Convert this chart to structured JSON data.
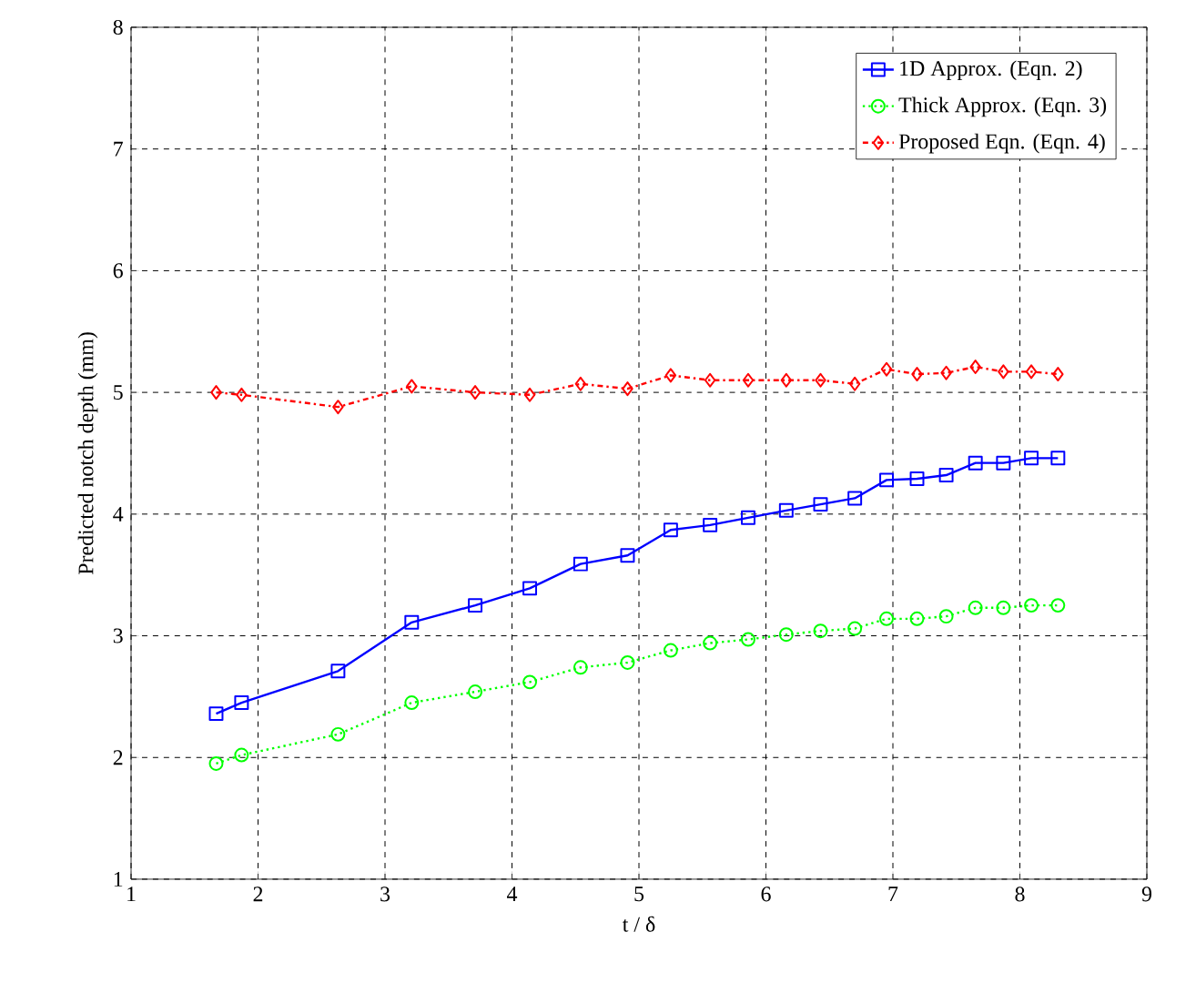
{
  "chart_data": {
    "type": "line",
    "xlabel": "t / δ",
    "ylabel": "Predicted notch depth (mm)",
    "x": [
      1.67,
      1.87,
      2.63,
      3.21,
      3.71,
      4.14,
      4.54,
      4.91,
      5.25,
      5.56,
      5.86,
      6.16,
      6.43,
      6.7,
      6.95,
      7.19,
      7.42,
      7.65,
      7.87,
      8.09,
      8.3
    ],
    "series": [
      {
        "name": "1D Approx. (Eqn. 2)",
        "color": "#0000ff",
        "marker": "square",
        "line_style": "solid",
        "values": [
          2.36,
          2.45,
          2.71,
          3.11,
          3.25,
          3.39,
          3.59,
          3.66,
          3.87,
          3.91,
          3.97,
          4.03,
          4.08,
          4.13,
          4.28,
          4.29,
          4.32,
          4.42,
          4.42,
          4.46,
          4.46
        ]
      },
      {
        "name": "Thick Approx. (Eqn. 3)",
        "color": "#00ff00",
        "marker": "circle",
        "line_style": "dotted",
        "values": [
          1.95,
          2.02,
          2.19,
          2.45,
          2.54,
          2.62,
          2.74,
          2.78,
          2.88,
          2.94,
          2.97,
          3.01,
          3.04,
          3.06,
          3.14,
          3.14,
          3.16,
          3.23,
          3.23,
          3.25,
          3.25
        ]
      },
      {
        "name": "Proposed Eqn. (Eqn. 4)",
        "color": "#ff0000",
        "marker": "diamond",
        "line_style": "dashdot",
        "values": [
          5.0,
          4.98,
          4.88,
          5.05,
          5.0,
          4.98,
          5.07,
          5.03,
          5.14,
          5.1,
          5.1,
          5.1,
          5.1,
          5.07,
          5.19,
          5.15,
          5.16,
          5.21,
          5.17,
          5.17,
          5.15
        ]
      }
    ],
    "xlim": [
      1,
      9
    ],
    "ylim": [
      1,
      8
    ],
    "xticks": [
      1,
      2,
      3,
      4,
      5,
      6,
      7,
      8,
      9
    ],
    "yticks": [
      1,
      2,
      3,
      4,
      5,
      6,
      7,
      8
    ],
    "grid": true,
    "legend": "top right"
  }
}
